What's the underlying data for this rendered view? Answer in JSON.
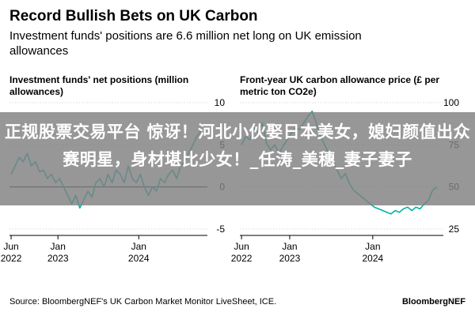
{
  "header": {
    "title": "Record Bullish Bets on UK Carbon",
    "subtitle": "Investment funds' positions are 6.6 million net long on UK emission allowances"
  },
  "colors": {
    "line": "#00b3a4",
    "zero_line": "#000000",
    "text": "#000000",
    "overlay": "#808080"
  },
  "chart_data": [
    {
      "type": "line",
      "title": "Investment funds' net positions (million allowances)",
      "ylim": [
        -5,
        10
      ],
      "yticks": [
        "10",
        "5",
        "0",
        "-5"
      ],
      "ytick_values": [
        10,
        5,
        0,
        -5
      ],
      "xlim": [
        2022.4,
        2024.85
      ],
      "xticks": [
        {
          "line1": "Jun",
          "line2": "2022",
          "value": 2022.42
        },
        {
          "line1": "Jan",
          "line2": "2023",
          "value": 2023.0
        },
        {
          "line1": "Jan",
          "line2": "2024",
          "value": 2024.0
        }
      ],
      "series": [
        {
          "name": "Net positions",
          "x": [
            2022.42,
            2022.47,
            2022.52,
            2022.57,
            2022.62,
            2022.67,
            2022.72,
            2022.77,
            2022.82,
            2022.87,
            2022.92,
            2022.97,
            2023.02,
            2023.07,
            2023.12,
            2023.17,
            2023.22,
            2023.27,
            2023.32,
            2023.37,
            2023.42,
            2023.47,
            2023.52,
            2023.57,
            2023.62,
            2023.67,
            2023.72,
            2023.77,
            2023.82,
            2023.87,
            2023.92,
            2023.97,
            2024.02,
            2024.07,
            2024.12,
            2024.17,
            2024.22,
            2024.27,
            2024.32,
            2024.37,
            2024.42,
            2024.47,
            2024.52,
            2024.57,
            2024.62,
            2024.67,
            2024.72,
            2024.77
          ],
          "values": [
            1.5,
            2.5,
            3.5,
            3.0,
            4.0,
            2.5,
            3.0,
            1.8,
            2.0,
            1.0,
            1.5,
            0.5,
            1.0,
            0.0,
            -1.0,
            -2.0,
            -1.0,
            -2.5,
            -1.5,
            -0.5,
            -1.2,
            0.5,
            1.0,
            0.0,
            1.5,
            0.5,
            2.0,
            1.5,
            0.5,
            2.5,
            1.0,
            0.5,
            1.5,
            0.0,
            -1.0,
            0.0,
            -0.5,
            1.0,
            0.5,
            1.5,
            2.0,
            1.0,
            2.5,
            3.0,
            4.0,
            5.0,
            6.0,
            6.6
          ]
        }
      ]
    },
    {
      "type": "line",
      "title": "Front-year UK carbon allowance price (£ per metric ton CO2e)",
      "ylim": [
        25,
        100
      ],
      "yticks": [
        "100",
        "75",
        "50",
        "25"
      ],
      "ytick_values": [
        100,
        75,
        50,
        25
      ],
      "xlim": [
        2022.4,
        2024.85
      ],
      "xticks": [
        {
          "line1": "Jun",
          "line2": "2022",
          "value": 2022.42
        },
        {
          "line1": "Jan",
          "line2": "2023",
          "value": 2023.0
        },
        {
          "line1": "Jan",
          "line2": "2024",
          "value": 2024.0
        }
      ],
      "series": [
        {
          "name": "Price",
          "x": [
            2022.42,
            2022.47,
            2022.52,
            2022.57,
            2022.62,
            2022.67,
            2022.72,
            2022.77,
            2022.82,
            2022.87,
            2022.92,
            2022.97,
            2023.02,
            2023.07,
            2023.12,
            2023.17,
            2023.22,
            2023.27,
            2023.32,
            2023.37,
            2023.42,
            2023.47,
            2023.52,
            2023.57,
            2023.62,
            2023.67,
            2023.72,
            2023.77,
            2023.82,
            2023.87,
            2023.92,
            2023.97,
            2024.02,
            2024.07,
            2024.12,
            2024.17,
            2024.22,
            2024.27,
            2024.32,
            2024.37,
            2024.42,
            2024.47,
            2024.52,
            2024.57,
            2024.62,
            2024.67,
            2024.72,
            2024.77
          ],
          "values": [
            75,
            80,
            78,
            85,
            82,
            88,
            76,
            72,
            75,
            70,
            74,
            78,
            82,
            85,
            84,
            88,
            92,
            95,
            88,
            80,
            75,
            70,
            65,
            60,
            55,
            58,
            52,
            48,
            46,
            44,
            42,
            40,
            38,
            37,
            36,
            35,
            34,
            36,
            35,
            37,
            38,
            36,
            38,
            37,
            40,
            42,
            48,
            50
          ]
        }
      ]
    }
  ],
  "overlay": {
    "text": "正规股票交易平台 惊讶！河北小伙娶日本美女，媳妇颜值出众赛明星，身材堪比少女！_任涛_美穗_妻子妻子"
  },
  "footer": {
    "source": "Source: BloombergNEF's UK Carbon Market Monitor LiveSheet, ICE.",
    "brand": "BloombergNEF"
  }
}
